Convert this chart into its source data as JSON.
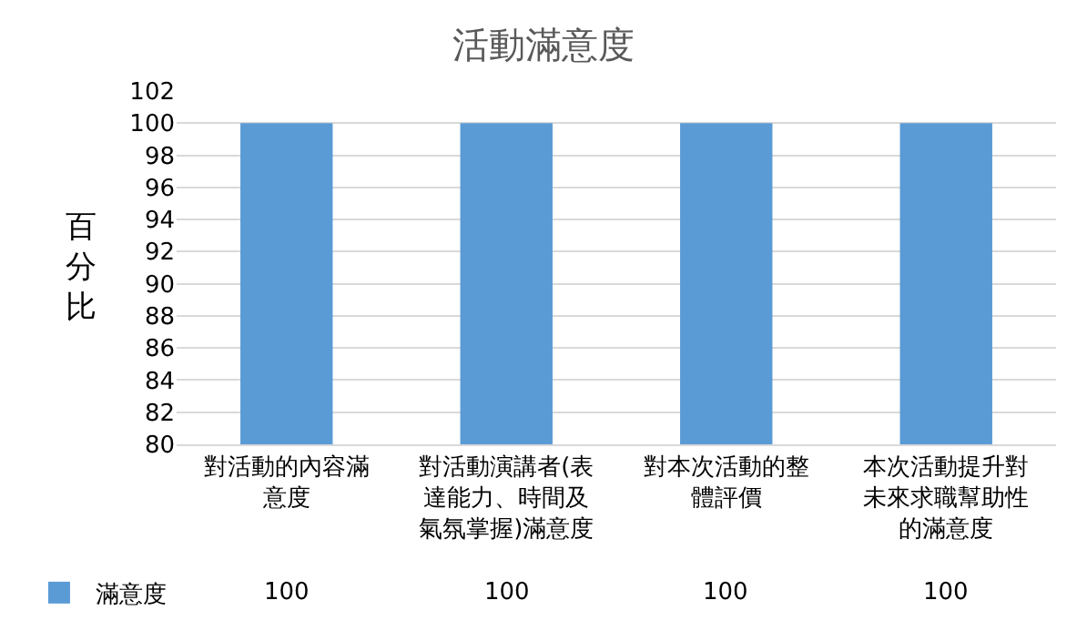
{
  "chart_data": {
    "type": "bar",
    "title": "活動滿意度",
    "ylabel": "百分比",
    "categories": [
      "對活動的內容滿意度",
      "對活動演講者(表達能力、時間及氣氛掌握)滿意度",
      "對本次活動的整體評價",
      "本次活動提升對未來求職幫助性的滿意度"
    ],
    "series": [
      {
        "name": "滿意度",
        "color": "#5b9bd5",
        "values": [
          100,
          100,
          100,
          100
        ]
      }
    ],
    "ylim": [
      80,
      102
    ],
    "yticks": [
      80,
      82,
      84,
      86,
      88,
      90,
      92,
      94,
      96,
      98,
      100,
      102
    ],
    "grid": "y",
    "legend": "bottom left",
    "data_labels": true
  }
}
